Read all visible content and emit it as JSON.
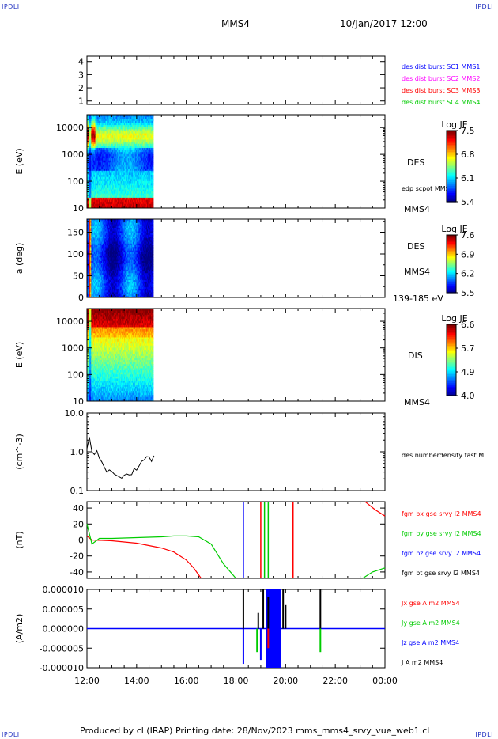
{
  "corners": {
    "tl": "IPDLI",
    "tr": "IPDLI",
    "bl": "IPDLI",
    "br": "IPDLI"
  },
  "header": {
    "spacecraft": "MMS4",
    "datetime": "10/Jan/2017 12:00"
  },
  "footer": {
    "text": "Produced by cl (IRAP)   Printing date: 28/Nov/2023   mms_mms4_srvy_vue_web1.cl"
  },
  "x_axis": {
    "ticks": [
      "12:00",
      "14:00",
      "16:00",
      "18:00",
      "20:00",
      "22:00",
      "00:00"
    ]
  },
  "colors": {
    "red": "#ff0000",
    "green": "#00cc00",
    "blue": "#0000ff",
    "magenta": "#ff00ff",
    "black": "#000000"
  },
  "chart_data": [
    {
      "type": "line",
      "panel": "burst-availability",
      "yticks": [
        "1",
        "2",
        "3",
        "4"
      ],
      "ylim": [
        1,
        4
      ],
      "legend": [
        {
          "label": "des dist burst SC1 MMS1",
          "color": "#0000ff"
        },
        {
          "label": "des dist burst SC2 MMS2",
          "color": "#ff00ff"
        },
        {
          "label": "des dist burst SC3 MMS3",
          "color": "#ff0000"
        },
        {
          "label": "des dist burst SC4 MMS4",
          "color": "#00cc00"
        }
      ]
    },
    {
      "type": "heatmap",
      "panel": "des-energy",
      "ylabel": "E (eV)",
      "yscale": "log",
      "ylim": [
        10,
        30000
      ],
      "yticks": [
        "10",
        "100",
        "1000",
        "10000"
      ],
      "side_label": "DES",
      "side_label2": "MMS4",
      "side_note": "edp scpot MMS4",
      "colorbar": {
        "title": "Log JE",
        "ticks": [
          "7.5",
          "6.8",
          "6.1",
          "5.4"
        ],
        "range": [
          5.4,
          7.5
        ]
      },
      "x_extent": [
        "12:00",
        "14:40"
      ]
    },
    {
      "type": "heatmap",
      "panel": "des-pitch-angle",
      "ylabel": "a (deg)",
      "ylim": [
        0,
        180
      ],
      "yticks": [
        "0",
        "50",
        "100",
        "150"
      ],
      "side_label": "DES",
      "side_label2": "MMS4",
      "side_note": "139-185 eV",
      "colorbar": {
        "title": "Log JE",
        "ticks": [
          "7.6",
          "6.9",
          "6.2",
          "5.5"
        ],
        "range": [
          5.5,
          7.6
        ]
      },
      "x_extent": [
        "12:00",
        "14:40"
      ]
    },
    {
      "type": "heatmap",
      "panel": "dis-energy",
      "ylabel": "E (eV)",
      "yscale": "log",
      "ylim": [
        10,
        30000
      ],
      "yticks": [
        "10",
        "100",
        "1000",
        "10000"
      ],
      "side_label": "DIS",
      "side_label2": "MMS4",
      "colorbar": {
        "title": "Log JE",
        "ticks": [
          "6.6",
          "5.7",
          "4.9",
          "4.0"
        ],
        "range": [
          4.0,
          6.6
        ]
      },
      "x_extent": [
        "12:00",
        "14:40"
      ]
    },
    {
      "type": "line",
      "panel": "density",
      "ylabel": "(cm^-3)",
      "yscale": "log",
      "ylim": [
        0.1,
        10
      ],
      "yticks": [
        "0.1",
        "1.0",
        "10.0"
      ],
      "legend": [
        {
          "label": "des numberdensity fast M",
          "color": "#000000"
        }
      ],
      "series": [
        {
          "x": [
            0,
            0.1,
            0.2,
            0.3,
            0.4,
            0.5,
            0.6,
            0.7,
            0.8,
            0.9,
            1.0,
            1.1,
            1.2,
            1.3,
            1.4,
            1.5,
            1.6,
            1.7,
            1.8,
            1.9,
            2.0,
            2.1,
            2.2,
            2.3,
            2.4,
            2.5,
            2.6,
            2.7
          ],
          "values": [
            1.2,
            2.4,
            1.0,
            0.8,
            1.1,
            0.6,
            0.5,
            0.4,
            0.35,
            0.3,
            0.28,
            0.25,
            0.22,
            0.2,
            0.2,
            0.22,
            0.24,
            0.28,
            0.3,
            0.33,
            0.38,
            0.45,
            0.5,
            0.6,
            0.7,
            0.8,
            0.6,
            0.7
          ]
        }
      ]
    },
    {
      "type": "line",
      "panel": "magnetic-field",
      "ylabel": "(nT)",
      "ylim": [
        -48,
        48
      ],
      "yticks": [
        "-40",
        "-20",
        "0",
        "20",
        "40"
      ],
      "legend": [
        {
          "label": "fgm bx gse srvy l2 MMS4",
          "color": "#ff0000"
        },
        {
          "label": "fgm by gse srvy l2 MMS4",
          "color": "#00cc00"
        },
        {
          "label": "fgm bz gse srvy l2 MMS4",
          "color": "#0000ff"
        },
        {
          "label": "fgm bt gse srvy l2 MMS4",
          "color": "#000000"
        }
      ],
      "series": [
        {
          "name": "fgm bx gse srvy l2 MMS4",
          "x": [
            0,
            0.2,
            1,
            2,
            3,
            3.5,
            4,
            4.3,
            4.6,
            5.3
          ],
          "values": [
            5,
            0,
            -1,
            -4,
            -10,
            -15,
            -25,
            -35,
            -48,
            null
          ]
        },
        {
          "name": "fgm by gse srvy l2 MMS4",
          "x": [
            0,
            0.2,
            0.5,
            1,
            2,
            3,
            3.5,
            4,
            4.5,
            5,
            5.5,
            6
          ],
          "values": [
            20,
            -5,
            2,
            2,
            3,
            4,
            5,
            5,
            4,
            -5,
            -30,
            -48
          ]
        },
        {
          "name": "fgm bz gse srvy l2 MMS4",
          "x": [
            0,
            6.3
          ],
          "values": [
            0,
            0
          ]
        }
      ]
    },
    {
      "type": "line",
      "panel": "current-density",
      "ylabel": "(A/m2)",
      "ylim": [
        -1e-05,
        1e-05
      ],
      "yticks": [
        "-0.000010",
        "-0.000005",
        "0.000000",
        "0.000005",
        "0.000010"
      ],
      "legend": [
        {
          "label": "Jx gse A m2 MMS4",
          "color": "#ff0000"
        },
        {
          "label": "Jy gse A m2 MMS4",
          "color": "#00cc00"
        },
        {
          "label": "Jz gse A m2 MMS4",
          "color": "#0000ff"
        },
        {
          "label": "J A m2 MMS4",
          "color": "#000000"
        }
      ]
    }
  ]
}
